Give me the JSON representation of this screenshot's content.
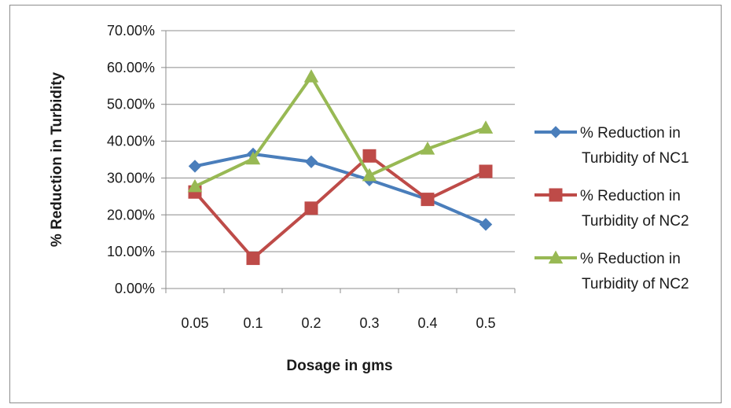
{
  "chart_data": {
    "type": "line",
    "title": "",
    "xlabel": "Dosage in gms",
    "ylabel": "% Reduction in Turbidity",
    "categories": [
      "0.05",
      "0.1",
      "0.2",
      "0.3",
      "0.4",
      "0.5"
    ],
    "ylim": [
      0,
      0.7
    ],
    "yticks": [
      0,
      0.1,
      0.2,
      0.3,
      0.4,
      0.5,
      0.6,
      0.7
    ],
    "ytick_labels": [
      "0.00%",
      "10.00%",
      "20.00%",
      "30.00%",
      "40.00%",
      "50.00%",
      "60.00%",
      "70.00%"
    ],
    "grid": "horizontal",
    "legend_position": "right",
    "series": [
      {
        "name_lines": [
          "% Reduction in",
          "Turbidity of NC1"
        ],
        "color": "#4a7ebb",
        "marker": "diamond",
        "values": [
          0.332,
          0.365,
          0.344,
          0.295,
          0.242,
          0.174
        ]
      },
      {
        "name_lines": [
          "% Reduction in",
          "Turbidity of NC2"
        ],
        "color": "#be4b48",
        "marker": "square",
        "values": [
          0.262,
          0.082,
          0.218,
          0.36,
          0.242,
          0.318
        ]
      },
      {
        "name_lines": [
          "% Reduction in",
          "Turbidity of NC2"
        ],
        "color": "#98b954",
        "marker": "triangle",
        "values": [
          0.277,
          0.352,
          0.575,
          0.307,
          0.379,
          0.436
        ]
      }
    ]
  }
}
